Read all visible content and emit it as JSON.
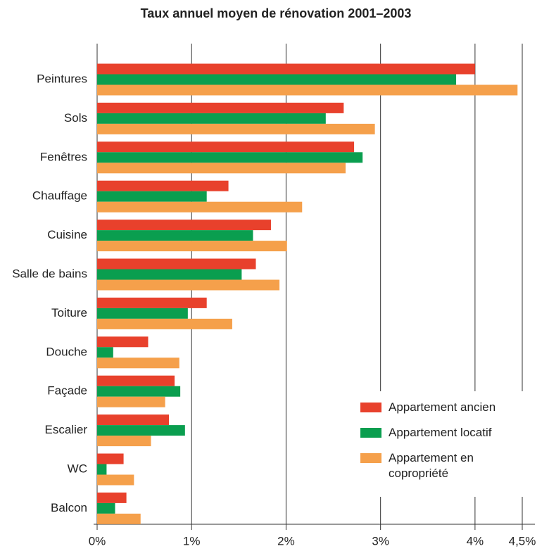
{
  "chart_data": {
    "type": "bar",
    "orientation": "horizontal",
    "title": "Taux annuel moyen de rénovation 2001–2003",
    "categories": [
      "Peintures",
      "Sols",
      "Fenêtres",
      "Chauffage",
      "Cuisine",
      "Salle de bains",
      "Toiture",
      "Douche",
      "Façade",
      "Escalier",
      "WC",
      "Balcon"
    ],
    "series": [
      {
        "name": "Appartement ancien",
        "color": "#e8412c",
        "values": [
          4.0,
          2.61,
          2.72,
          1.39,
          1.84,
          1.68,
          1.16,
          0.54,
          0.82,
          0.76,
          0.28,
          0.31
        ]
      },
      {
        "name": "Appartement locatif",
        "color": "#0a9e4f",
        "values": [
          3.8,
          2.42,
          2.81,
          1.16,
          1.65,
          1.53,
          0.96,
          0.17,
          0.88,
          0.93,
          0.1,
          0.19
        ]
      },
      {
        "name": "Appartement en copropriété",
        "color": "#f5a04b",
        "values": [
          4.45,
          2.94,
          2.63,
          2.17,
          2.01,
          1.93,
          1.43,
          0.87,
          0.72,
          0.57,
          0.39,
          0.46
        ]
      }
    ],
    "xlim": [
      0,
      4.5
    ],
    "xticks": [
      {
        "value": 0,
        "label": "0%"
      },
      {
        "value": 1,
        "label": "1%"
      },
      {
        "value": 2,
        "label": "2%"
      },
      {
        "value": 3,
        "label": "3%"
      },
      {
        "value": 4,
        "label": "4%"
      },
      {
        "value": 4.5,
        "label": "4,5%"
      }
    ],
    "grid": true,
    "legend": "lower right"
  }
}
